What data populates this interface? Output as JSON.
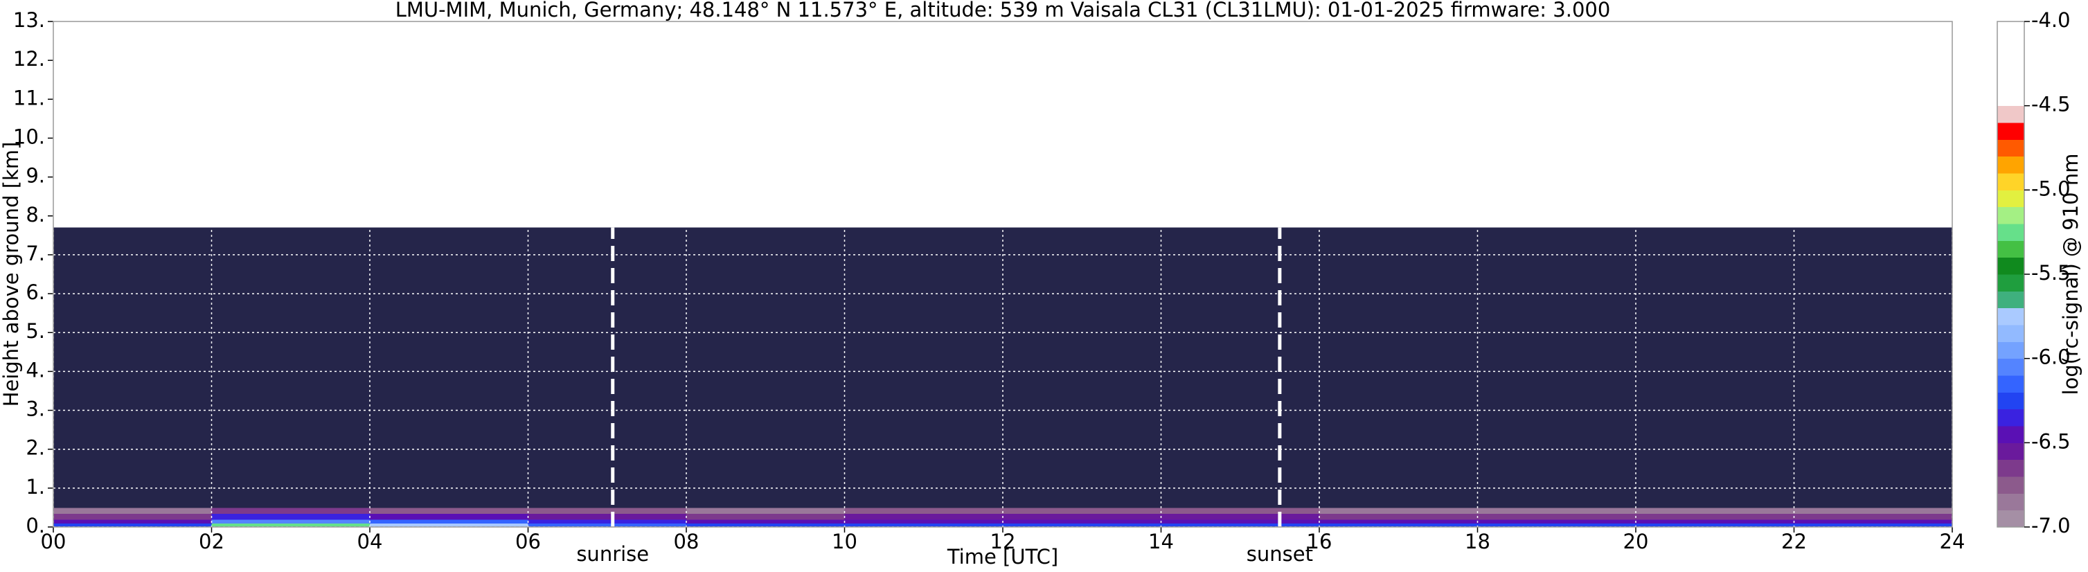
{
  "chart_data": {
    "type": "heatmap",
    "title": "LMU-MIM, Munich, Germany; 48.148° N 11.573° E, altitude: 539 m    Vaisala CL31 (CL31LMU): 01-01-2025    firmware: 3.000",
    "xlabel": "Time [UTC]",
    "ylabel": "Height above ground [km]",
    "x_edges": [
      0,
      2,
      4,
      6,
      8,
      10,
      12,
      14,
      16,
      18,
      20,
      22,
      24
    ],
    "y_edges": [
      0,
      0.1,
      0.2,
      0.35,
      0.5,
      1,
      2,
      3,
      4,
      5,
      6,
      7,
      7.7
    ],
    "z": [
      [
        -6.3,
        -5.3,
        -5.8,
        -6.2,
        -6.3,
        -6.3,
        -6.3,
        -6.3,
        -6.3,
        -6.3,
        -6.3,
        -6.3
      ],
      [
        -6.5,
        -6.1,
        -6.2,
        -6.4,
        -6.5,
        -6.5,
        -6.5,
        -6.5,
        -6.5,
        -6.5,
        -6.5,
        -6.5
      ],
      [
        -6.7,
        -6.4,
        -6.5,
        -6.6,
        -6.7,
        -6.6,
        -6.6,
        -6.6,
        -6.7,
        -6.7,
        -6.7,
        -6.7
      ],
      [
        -6.9,
        -6.7,
        -6.8,
        -6.8,
        -6.9,
        -6.8,
        -6.8,
        -6.8,
        -6.9,
        -6.9,
        -6.9,
        -6.9
      ],
      [
        -7.2,
        -7.2,
        -7.2,
        -7.2,
        -7.2,
        -7.2,
        -7.2,
        -7.2,
        -7.2,
        -7.2,
        -7.2,
        -7.2
      ],
      [
        -7.3,
        -7.3,
        -7.3,
        -7.3,
        -7.3,
        -7.3,
        -7.3,
        -7.3,
        -7.3,
        -7.3,
        -7.3,
        -7.3
      ],
      [
        -7.3,
        -7.3,
        -7.3,
        -7.3,
        -7.3,
        -7.3,
        -7.3,
        -7.3,
        -7.3,
        -7.3,
        -7.3,
        -7.3
      ],
      [
        -7.3,
        -7.3,
        -7.3,
        -7.3,
        -7.3,
        -7.3,
        -7.3,
        -7.3,
        -7.3,
        -7.3,
        -7.3,
        -7.3
      ],
      [
        -7.3,
        -7.3,
        -7.3,
        -7.3,
        -7.3,
        -7.3,
        -7.3,
        -7.3,
        -7.3,
        -7.3,
        -7.3,
        -7.3
      ],
      [
        -7.3,
        -7.3,
        -7.3,
        -7.3,
        -7.3,
        -7.3,
        -7.3,
        -7.3,
        -7.3,
        -7.3,
        -7.3,
        -7.3
      ],
      [
        -7.3,
        -7.3,
        -7.3,
        -7.3,
        -7.3,
        -7.3,
        -7.3,
        -7.3,
        -7.3,
        -7.3,
        -7.3,
        -7.3
      ],
      [
        -7.3,
        -7.3,
        -7.3,
        -7.3,
        -7.3,
        -7.3,
        -7.3,
        -7.3,
        -7.3,
        -7.3,
        -7.3,
        -7.3
      ]
    ],
    "xlim": [
      0,
      24
    ],
    "ylim": [
      0,
      13
    ],
    "xticks": [
      {
        "value": 0,
        "label": "00"
      },
      {
        "value": 2,
        "label": "02"
      },
      {
        "value": 4,
        "label": "04"
      },
      {
        "value": 6,
        "label": "06"
      },
      {
        "value": 8,
        "label": "08"
      },
      10,
      12,
      14,
      16,
      18,
      20,
      22,
      24
    ],
    "yticks": [
      {
        "value": 0,
        "label": "0."
      },
      {
        "value": 1,
        "label": "1."
      },
      {
        "value": 2,
        "label": "2."
      },
      {
        "value": 3,
        "label": "3."
      },
      {
        "value": 4,
        "label": "4."
      },
      {
        "value": 5,
        "label": "5."
      },
      {
        "value": 6,
        "label": "6."
      },
      {
        "value": 7,
        "label": "7."
      },
      {
        "value": 8,
        "label": "8."
      },
      {
        "value": 9,
        "label": "9."
      },
      {
        "value": 10,
        "label": "10."
      },
      {
        "value": 11,
        "label": "11."
      },
      {
        "value": 12,
        "label": "12."
      },
      {
        "value": 13,
        "label": "13."
      }
    ],
    "grid": true,
    "grid_color": "#ffffff",
    "annotations": [
      {
        "text": "sunrise",
        "x": 7.07
      },
      {
        "text": "sunset",
        "x": 15.5
      }
    ],
    "colorbar": {
      "label": "log(rc-signal) @ 910 nm",
      "lim": [
        -7,
        -4
      ],
      "ticks": [
        {
          "value": -7,
          "label": "-7.0"
        },
        -6.5,
        {
          "value": -6,
          "label": "-6.0"
        },
        -5.5,
        {
          "value": -5,
          "label": "-5.0"
        },
        -4.5,
        {
          "value": -4,
          "label": "-4.0"
        }
      ],
      "levels": [
        -7.0,
        -6.9,
        -6.8,
        -6.7,
        -6.6,
        -6.5,
        -6.4,
        -6.3,
        -6.2,
        -6.1,
        -6.0,
        -5.9,
        -5.8,
        -5.7,
        -5.6,
        -5.5,
        -5.4,
        -5.3,
        -5.2,
        -5.1,
        -5.0,
        -4.9,
        -4.8,
        -4.7,
        -4.6,
        -4.5,
        -4.4,
        -4.3,
        -4.2,
        -4.1,
        -4.0
      ],
      "colors": [
        "#a58fa5",
        "#9a789a",
        "#8c5a8c",
        "#7d3a8c",
        "#6a1a9c",
        "#5a10b4",
        "#3a22e0",
        "#2244f2",
        "#3464ff",
        "#5484ff",
        "#74a2ff",
        "#92baff",
        "#aacaff",
        "#3fb07e",
        "#1f9e3e",
        "#108a1e",
        "#44c044",
        "#66e08a",
        "#a4f084",
        "#e2f040",
        "#ffd428",
        "#ffa400",
        "#ff5a00",
        "#ff0000",
        "#f0c8c8",
        "#ffffff",
        "#ffffff",
        "#ffffff",
        "#ffffff",
        "#ffffff"
      ],
      "under_color": "#25254a"
    }
  }
}
